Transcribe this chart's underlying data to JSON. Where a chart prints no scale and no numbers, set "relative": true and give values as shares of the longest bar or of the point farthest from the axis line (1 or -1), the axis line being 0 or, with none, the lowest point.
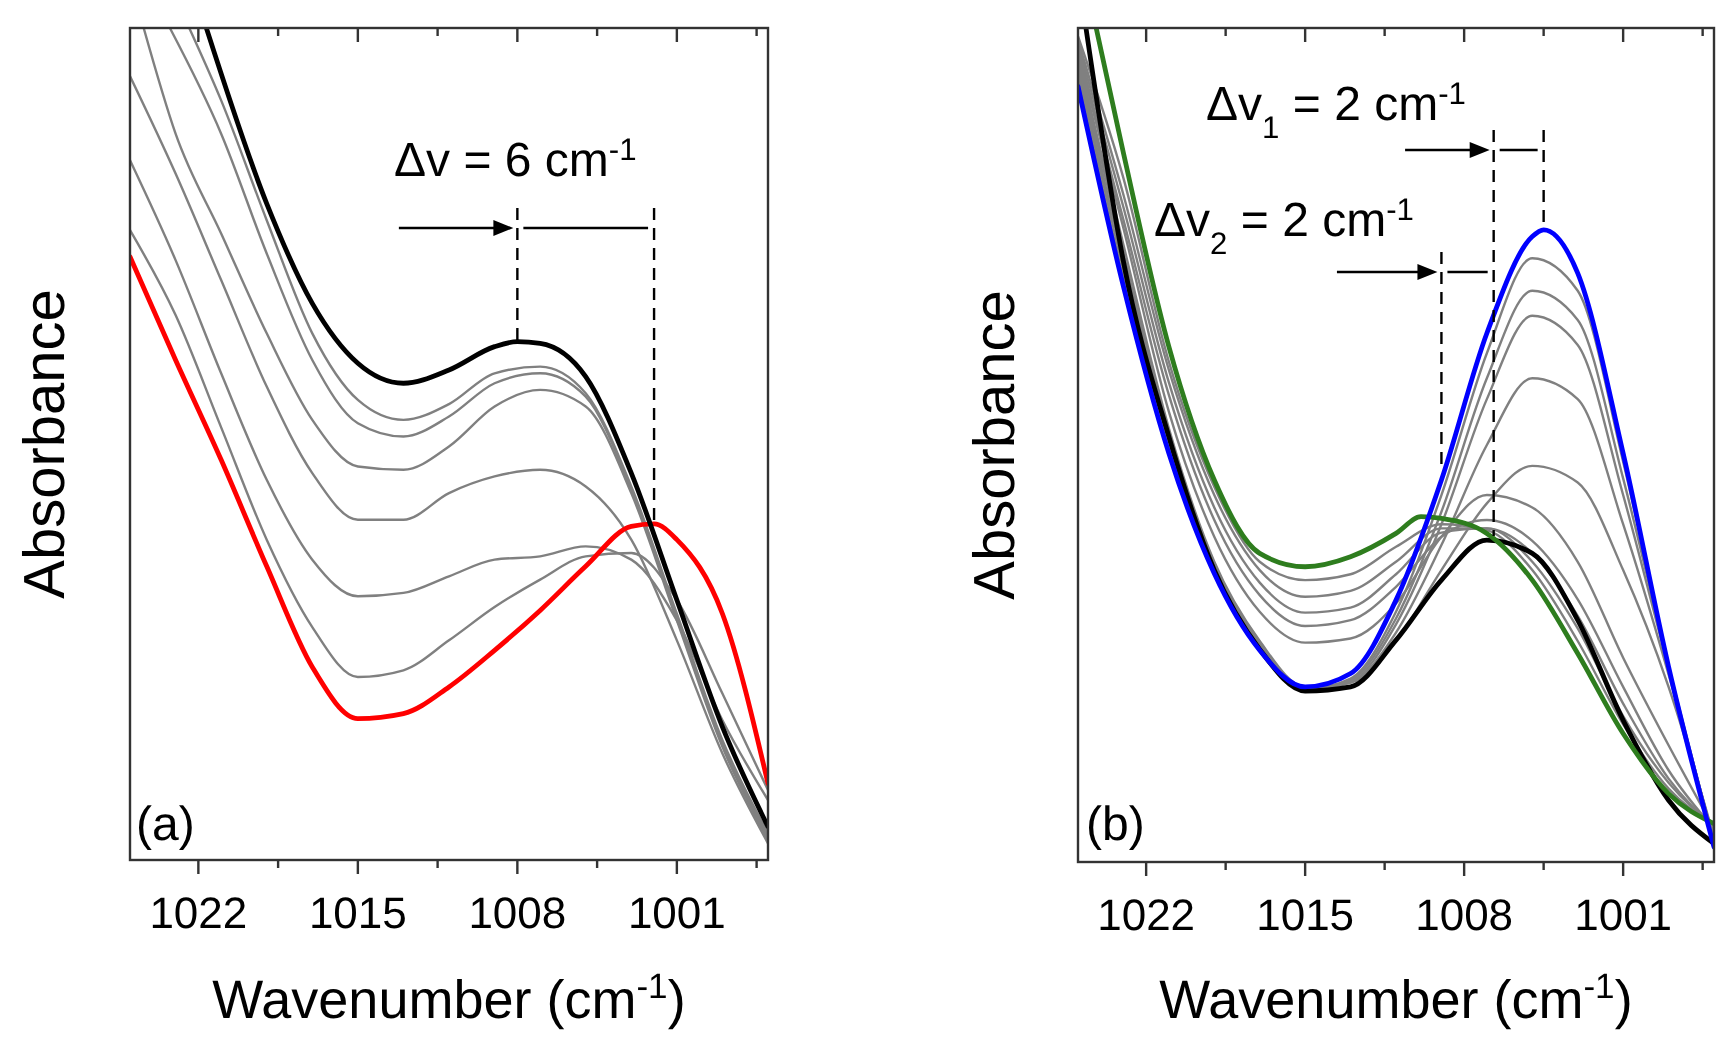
{
  "chart_data": [
    {
      "type": "line",
      "xlabel": "Wavenumber (cm$^{-1}$)",
      "ylabel": "Absorbance",
      "relative": true,
      "xlim": [
        1025,
        997
      ],
      "xticks": [
        1022,
        {
          "value": 1018.5,
          "label": null
        },
        1015,
        {
          "value": 1011.5,
          "label": null
        },
        1008,
        {
          "value": 1004.5,
          "label": null
        },
        1001,
        {
          "value": 997.5,
          "label": null
        }
      ],
      "annotations": [
        "Δv = 6 cm$^{-1}$",
        "(a)"
      ],
      "ref_lines": [
        {
          "axis": "x",
          "value": 1008,
          "color": "#000000",
          "line_style": "dashed"
        },
        {
          "axis": "x",
          "value": 1002,
          "color": "#000000",
          "line_style": "dashed"
        }
      ],
      "series": [
        {
          "color": "#808080",
          "x": [
            1022.4,
            1021,
            1019,
            1017,
            1015,
            1013,
            1011,
            1009,
            1007,
            1005,
            1003,
            1001,
            999,
            997
          ],
          "values": [
            1,
            0.913,
            0.769,
            0.633,
            0.553,
            0.529,
            0.548,
            0.585,
            0.593,
            0.561,
            0.449,
            0.296,
            0.144,
            0.032
          ]
        },
        {
          "color": "#808080",
          "x": [
            1023.25,
            1021,
            1019,
            1017,
            1015,
            1013,
            1011,
            1009,
            1007,
            1005,
            1003,
            1001,
            999,
            997
          ],
          "values": [
            1,
            0.873,
            0.729,
            0.601,
            0.525,
            0.509,
            0.533,
            0.573,
            0.585,
            0.557,
            0.445,
            0.292,
            0.14,
            0.028
          ]
        },
        {
          "color": "#808080",
          "x": [
            1024.4,
            1023,
            1021,
            1019,
            1017,
            1015,
            1013,
            1011,
            1009,
            1007,
            1005,
            1003,
            1001,
            999,
            997
          ],
          "values": [
            1,
            0.873,
            0.753,
            0.633,
            0.529,
            0.473,
            0.469,
            0.497,
            0.545,
            0.565,
            0.545,
            0.441,
            0.288,
            0.136,
            0.024
          ]
        },
        {
          "color": "#808080",
          "x": [
            1025,
            1023,
            1021,
            1019,
            1017,
            1015,
            1013,
            1011,
            1009,
            1007,
            1005,
            1003,
            1001,
            999,
            997
          ],
          "values": [
            0.942,
            0.825,
            0.697,
            0.569,
            0.465,
            0.409,
            0.409,
            0.441,
            0.461,
            0.469,
            0.449,
            0.385,
            0.264,
            0.128,
            0.02
          ]
        },
        {
          "color": "#808080",
          "x": [
            1025,
            1023,
            1021,
            1019,
            1017,
            1015,
            1013,
            1011,
            1009,
            1007,
            1005,
            1003,
            1001,
            999,
            997
          ],
          "values": [
            0.841,
            0.721,
            0.585,
            0.457,
            0.361,
            0.317,
            0.321,
            0.341,
            0.361,
            0.365,
            0.377,
            0.361,
            0.288,
            0.168,
            0.072
          ]
        },
        {
          "color": "#808080",
          "x": [
            1025,
            1023,
            1021,
            1019,
            1017,
            1015,
            1013,
            1011,
            1009,
            1007,
            1005,
            1003,
            1001,
            999,
            997
          ],
          "values": [
            0.757,
            0.655,
            0.52,
            0.385,
            0.28,
            0.22,
            0.228,
            0.264,
            0.304,
            0.337,
            0.365,
            0.369,
            0.3125,
            0.2,
            0.084
          ]
        },
        {
          "color": "#ff0000",
          "x": [
            1025,
            1023,
            1021,
            1019,
            1017,
            1015,
            1013,
            1011,
            1009,
            1007,
            1005,
            1003,
            1002,
            1001,
            999,
            997
          ],
          "values": [
            0.725,
            0.601,
            0.481,
            0.353,
            0.232,
            0.17,
            0.176,
            0.208,
            0.252,
            0.3,
            0.353,
            0.401,
            0.404,
            0.385,
            0.296,
            0.092
          ]
        },
        {
          "color": "#000000",
          "x": [
            1021.65,
            1019,
            1017,
            1015,
            1013,
            1011,
            1009,
            1008,
            1007,
            1005,
            1003,
            1001,
            999,
            997
          ],
          "values": [
            1,
            0.789,
            0.669,
            0.597,
            0.573,
            0.589,
            0.617,
            0.623,
            0.621,
            0.581,
            0.465,
            0.3125,
            0.16,
            0.04
          ]
        }
      ]
    },
    {
      "type": "line",
      "xlabel": "Wavenumber (cm$^{-1}$)",
      "ylabel": "Absorbance",
      "relative": true,
      "xlim": [
        1025,
        997
      ],
      "xticks": [
        1022,
        {
          "value": 1018.5,
          "label": null
        },
        1015,
        {
          "value": 1011.5,
          "label": null
        },
        1008,
        {
          "value": 1004.5,
          "label": null
        },
        1001,
        {
          "value": 997.5,
          "label": null
        }
      ],
      "annotations": [
        "Δv$_{1}$ = 2 cm$^{-1}$",
        "Δv$_{2}$ = 2 cm$^{-1}$",
        "(b)"
      ],
      "ref_lines": [
        {
          "axis": "x",
          "value": 1009,
          "color": "#000000",
          "line_style": "dashed"
        },
        {
          "axis": "x",
          "value": 1006.7,
          "color": "#000000",
          "line_style": "dashed"
        },
        {
          "axis": "x",
          "value": 1004.5,
          "color": "#000000",
          "line_style": "dashed"
        }
      ],
      "x": [
        1025,
        1023,
        1021,
        1019,
        1017,
        1015,
        1013,
        1011,
        1009,
        1007,
        1005,
        1003,
        1001,
        999,
        997
      ],
      "series": [
        {
          "color": "#808080",
          "values": [
            0.94,
            0.7,
            0.5,
            0.35,
            0.256,
            0.207,
            0.22,
            0.3,
            0.44,
            0.61,
            0.724,
            0.685,
            0.48,
            0.235,
            0.02
          ]
        },
        {
          "color": "#808080",
          "values": [
            0.95,
            0.71,
            0.505,
            0.352,
            0.258,
            0.206,
            0.218,
            0.292,
            0.42,
            0.58,
            0.685,
            0.65,
            0.46,
            0.235,
            0.022
          ]
        },
        {
          "color": "#808080",
          "values": [
            0.955,
            0.72,
            0.51,
            0.355,
            0.26,
            0.206,
            0.216,
            0.285,
            0.405,
            0.555,
            0.655,
            0.62,
            0.44,
            0.232,
            0.024
          ]
        },
        {
          "color": "#808080",
          "values": [
            0.96,
            0.73,
            0.515,
            0.358,
            0.262,
            0.207,
            0.215,
            0.275,
            0.38,
            0.5,
            0.58,
            0.555,
            0.405,
            0.225,
            0.026
          ]
        },
        {
          "color": "#808080",
          "values": [
            0.965,
            0.74,
            0.52,
            0.36,
            0.265,
            0.21,
            0.215,
            0.265,
            0.35,
            0.43,
            0.475,
            0.455,
            0.35,
            0.21,
            0.03
          ]
        },
        {
          "color": "#808080",
          "values": [
            0.97,
            0.76,
            0.54,
            0.39,
            0.3,
            0.263,
            0.268,
            0.31,
            0.39,
            0.44,
            0.425,
            0.36,
            0.245,
            0.14,
            0.04
          ]
        },
        {
          "color": "#808080",
          "values": [
            0.975,
            0.77,
            0.56,
            0.41,
            0.32,
            0.283,
            0.29,
            0.33,
            0.39,
            0.41,
            0.385,
            0.315,
            0.21,
            0.11,
            0.04
          ]
        },
        {
          "color": "#808080",
          "values": [
            0.98,
            0.785,
            0.575,
            0.425,
            0.335,
            0.299,
            0.305,
            0.345,
            0.395,
            0.4,
            0.37,
            0.295,
            0.19,
            0.1,
            0.042
          ]
        },
        {
          "color": "#808080",
          "values": [
            0.985,
            0.8,
            0.59,
            0.44,
            0.35,
            0.318,
            0.325,
            0.36,
            0.4,
            0.4,
            0.36,
            0.28,
            0.175,
            0.095,
            0.044
          ]
        },
        {
          "color": "#808080",
          "values": [
            0.99,
            0.82,
            0.6,
            0.45,
            0.36,
            0.338,
            0.345,
            0.378,
            0.405,
            0.398,
            0.35,
            0.265,
            0.165,
            0.088,
            0.045
          ]
        },
        {
          "color": "#000000",
          "x": [
            1024.65,
            1023,
            1021,
            1019,
            1017,
            1015,
            1013,
            1011,
            1009,
            1007,
            1005,
            1003,
            1001,
            999,
            997
          ],
          "values": [
            1,
            0.72,
            0.51,
            0.35,
            0.255,
            0.205,
            0.21,
            0.266,
            0.338,
            0.386,
            0.37,
            0.29,
            0.17,
            0.074,
            0.022
          ]
        },
        {
          "color": "#2e7d1e",
          "x": [
            1024.2,
            1023,
            1021,
            1019,
            1017,
            1015,
            1013,
            1011,
            1009.9,
            1009,
            1007,
            1005,
            1003,
            1001,
            999,
            997
          ],
          "values": [
            1,
            0.85,
            0.618,
            0.458,
            0.37,
            0.354,
            0.366,
            0.394,
            0.414,
            0.412,
            0.394,
            0.338,
            0.25,
            0.154,
            0.082,
            0.046
          ]
        },
        {
          "color": "#0000ff",
          "x": [
            1025,
            1023,
            1021,
            1019,
            1017,
            1015,
            1013,
            1011,
            1009,
            1007,
            1005,
            1004.5,
            1003,
            1001,
            999,
            997
          ],
          "values": [
            0.93,
            0.69,
            0.49,
            0.346,
            0.254,
            0.21,
            0.226,
            0.314,
            0.458,
            0.634,
            0.75,
            0.758,
            0.706,
            0.49,
            0.234,
            0.018
          ]
        }
      ]
    }
  ]
}
